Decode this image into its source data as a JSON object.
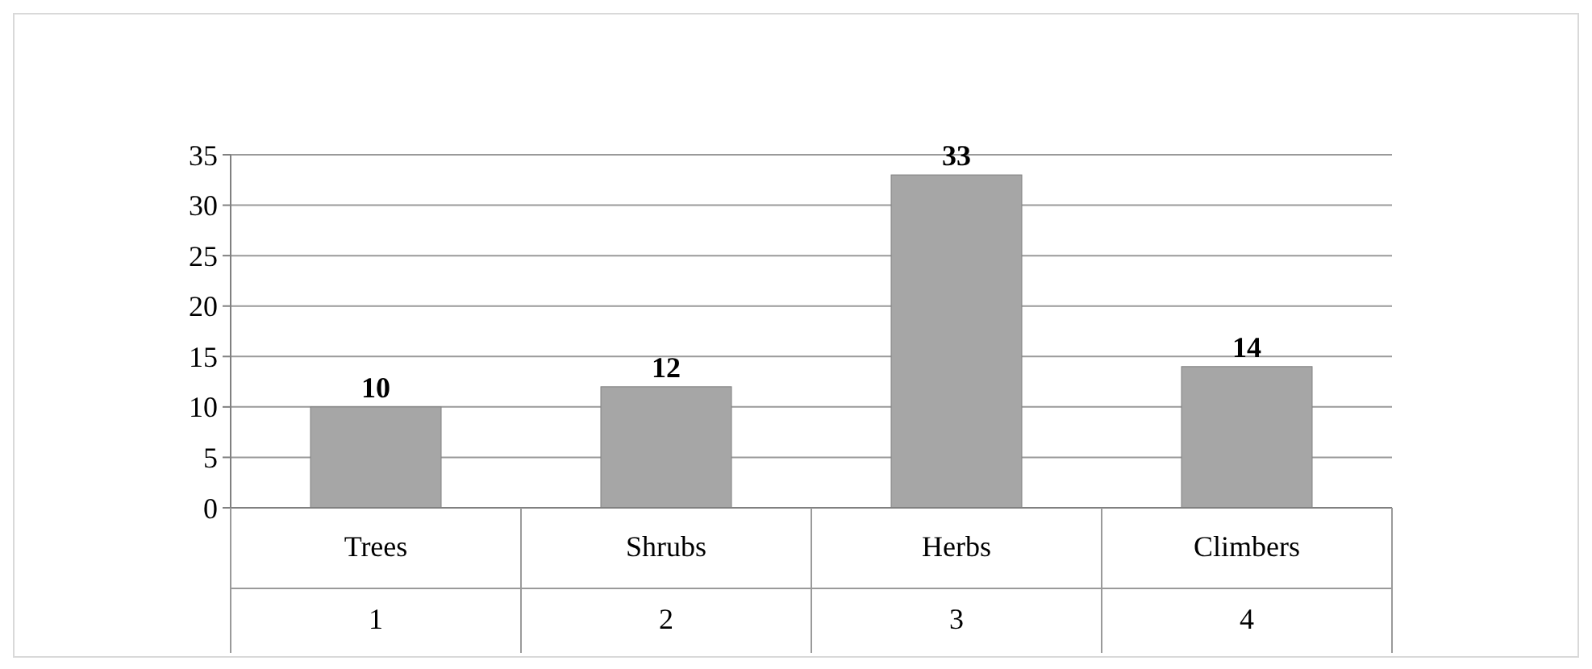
{
  "chart_data": {
    "type": "bar",
    "categories": [
      "Trees",
      "Shrubs",
      "Herbs",
      "Climbers"
    ],
    "values": [
      10,
      12,
      33,
      14
    ],
    "color": "#a6a6a6",
    "ylim": [
      0,
      35
    ],
    "yticks": [
      0,
      5,
      10,
      15,
      20,
      25,
      30,
      35
    ],
    "grid": "y",
    "data_labels": true,
    "annotations": [
      "1",
      "2",
      "3",
      "4"
    ]
  }
}
